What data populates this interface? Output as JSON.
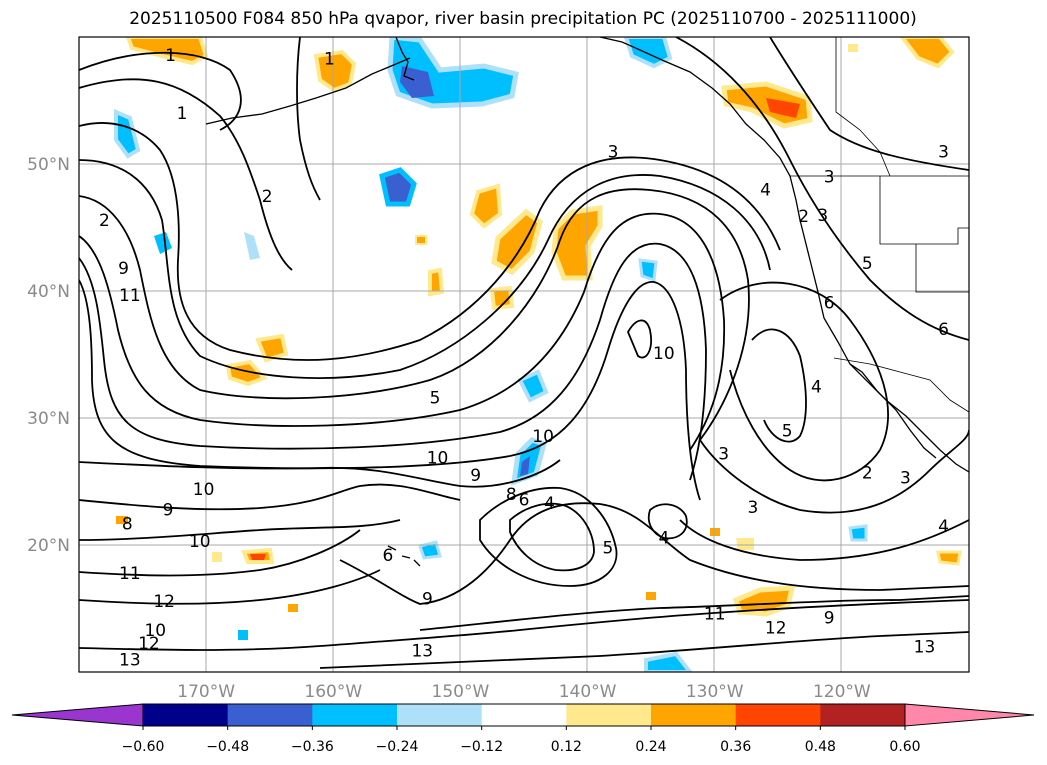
{
  "title": "2025110500 F084 850 hPa qvapor, river basin precipitation PC (2025110700 - 2025111000)",
  "map": {
    "lon_range": [
      -180,
      -110
    ],
    "lat_range": [
      10,
      60
    ],
    "lat_ticks": [
      {
        "value": 50,
        "label": "50°N"
      },
      {
        "value": 40,
        "label": "40°N"
      },
      {
        "value": 30,
        "label": "30°N"
      },
      {
        "value": 20,
        "label": "20°N"
      }
    ],
    "lon_ticks": [
      {
        "value": -170,
        "label": "170°W"
      },
      {
        "value": -160,
        "label": "160°W"
      },
      {
        "value": -150,
        "label": "150°W"
      },
      {
        "value": -140,
        "label": "140°W"
      },
      {
        "value": -130,
        "label": "130°W"
      },
      {
        "value": -120,
        "label": "120°W"
      }
    ],
    "contour_labels": [
      {
        "text": "1",
        "lon": -172.8,
        "lat": 58.6
      },
      {
        "text": "1",
        "lon": -160.3,
        "lat": 58.3
      },
      {
        "text": "1",
        "lon": -171.9,
        "lat": 54.0
      },
      {
        "text": "2",
        "lon": -165.2,
        "lat": 47.5
      },
      {
        "text": "2",
        "lon": -178.0,
        "lat": 45.6
      },
      {
        "text": "9",
        "lon": -176.5,
        "lat": 41.8
      },
      {
        "text": "11",
        "lon": -176.0,
        "lat": 39.7
      },
      {
        "text": "3",
        "lon": -138.0,
        "lat": 51.0
      },
      {
        "text": "4",
        "lon": -126.0,
        "lat": 48.0
      },
      {
        "text": "3",
        "lon": -121.0,
        "lat": 49.0
      },
      {
        "text": "3",
        "lon": -121.5,
        "lat": 46.0
      },
      {
        "text": "2",
        "lon": -123.0,
        "lat": 45.9
      },
      {
        "text": "3",
        "lon": -112.0,
        "lat": 51.0
      },
      {
        "text": "5",
        "lon": -118.0,
        "lat": 42.2
      },
      {
        "text": "6",
        "lon": -121.0,
        "lat": 39.1
      },
      {
        "text": "6",
        "lon": -112.0,
        "lat": 37.0
      },
      {
        "text": "10",
        "lon": -134.0,
        "lat": 35.1
      },
      {
        "text": "5",
        "lon": -152.0,
        "lat": 31.6
      },
      {
        "text": "4",
        "lon": -122.0,
        "lat": 32.5
      },
      {
        "text": "5",
        "lon": -124.3,
        "lat": 29.0
      },
      {
        "text": "10",
        "lon": -143.5,
        "lat": 28.6
      },
      {
        "text": "3",
        "lon": -129.3,
        "lat": 27.2
      },
      {
        "text": "10",
        "lon": -151.8,
        "lat": 26.9
      },
      {
        "text": "9",
        "lon": -148.8,
        "lat": 25.5
      },
      {
        "text": "2",
        "lon": -118.0,
        "lat": 25.7
      },
      {
        "text": "3",
        "lon": -115.0,
        "lat": 25.3
      },
      {
        "text": "10",
        "lon": -170.2,
        "lat": 24.4
      },
      {
        "text": "8",
        "lon": -146.0,
        "lat": 24.0
      },
      {
        "text": "6",
        "lon": -145.0,
        "lat": 23.6
      },
      {
        "text": "4",
        "lon": -143.0,
        "lat": 23.3
      },
      {
        "text": "3",
        "lon": -127.0,
        "lat": 23.0
      },
      {
        "text": "9",
        "lon": -173.0,
        "lat": 22.8
      },
      {
        "text": "8",
        "lon": -176.2,
        "lat": 21.7
      },
      {
        "text": "4",
        "lon": -134.0,
        "lat": 20.6
      },
      {
        "text": "10",
        "lon": -170.5,
        "lat": 20.3
      },
      {
        "text": "5",
        "lon": -138.4,
        "lat": 19.8
      },
      {
        "text": "6",
        "lon": -155.7,
        "lat": 19.2
      },
      {
        "text": "4",
        "lon": -112.0,
        "lat": 21.5
      },
      {
        "text": "11",
        "lon": -176.0,
        "lat": 17.8
      },
      {
        "text": "9",
        "lon": -152.6,
        "lat": 15.8
      },
      {
        "text": "12",
        "lon": -173.3,
        "lat": 15.6
      },
      {
        "text": "11",
        "lon": -130.0,
        "lat": 14.6
      },
      {
        "text": "9",
        "lon": -121.0,
        "lat": 14.3
      },
      {
        "text": "12",
        "lon": -125.2,
        "lat": 13.5
      },
      {
        "text": "10",
        "lon": -174.0,
        "lat": 13.3
      },
      {
        "text": "12",
        "lon": -174.5,
        "lat": 12.3
      },
      {
        "text": "13",
        "lon": -176.0,
        "lat": 11.0
      },
      {
        "text": "13",
        "lon": -153.0,
        "lat": 11.7
      },
      {
        "text": "13",
        "lon": -113.5,
        "lat": 12.0
      }
    ]
  },
  "colorbar": {
    "levels": [
      -0.72,
      -0.6,
      -0.54,
      -0.48,
      -0.42,
      -0.36,
      -0.3,
      -0.24,
      -0.18,
      -0.12,
      0.12,
      0.18,
      0.24,
      0.3,
      0.36,
      0.42,
      0.48,
      0.54,
      0.6,
      0.72
    ],
    "colors": [
      "#9a35d0",
      "#00008b",
      "#3a5fd0",
      "#00bfff",
      "#aee0fa",
      "#ffffff",
      "#ffe98c",
      "#ffa500",
      "#ff4500",
      "#b22222",
      "#ff88aa"
    ],
    "tick_labels": [
      "−0.60",
      "−0.48",
      "−0.36",
      "−0.24",
      "−0.12",
      "0.12",
      "0.24",
      "0.36",
      "0.48",
      "0.60"
    ]
  }
}
